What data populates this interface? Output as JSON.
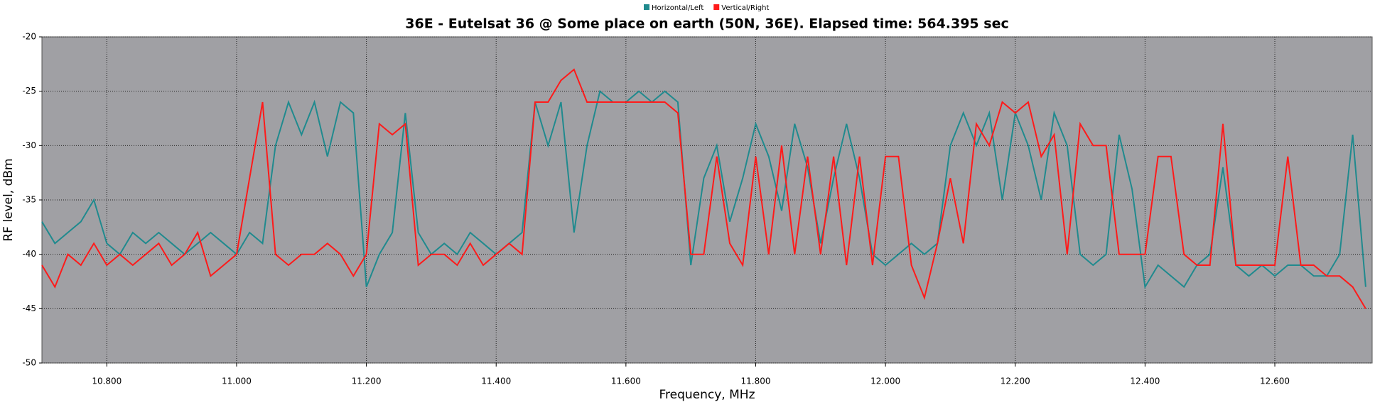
{
  "chart_data": {
    "type": "line",
    "title": "36E - Eutelsat 36 @ Some place on earth (50N, 36E). Elapsed time: 564.395 sec",
    "x_label": "Frequency, MHz",
    "y_label": "RF level, dBm",
    "x": [
      10.7,
      10.72,
      10.74,
      10.76,
      10.78,
      10.8,
      10.82,
      10.84,
      10.86,
      10.88,
      10.9,
      10.92,
      10.94,
      10.96,
      10.98,
      11,
      11.02,
      11.04,
      11.06,
      11.08,
      11.1,
      11.12,
      11.14,
      11.16,
      11.18,
      11.2,
      11.22,
      11.24,
      11.26,
      11.28,
      11.3,
      11.32,
      11.34,
      11.36,
      11.38,
      11.4,
      11.42,
      11.44,
      11.46,
      11.48,
      11.5,
      11.52,
      11.54,
      11.56,
      11.58,
      11.6,
      11.62,
      11.64,
      11.66,
      11.68,
      11.7,
      11.72,
      11.74,
      11.76,
      11.78,
      11.8,
      11.82,
      11.84,
      11.86,
      11.88,
      11.9,
      11.92,
      11.94,
      11.96,
      11.98,
      12,
      12.02,
      12.04,
      12.06,
      12.08,
      12.1,
      12.12,
      12.14,
      12.16,
      12.18,
      12.2,
      12.22,
      12.24,
      12.26,
      12.28,
      12.3,
      12.32,
      12.34,
      12.36,
      12.38,
      12.4,
      12.42,
      12.44,
      12.46,
      12.48,
      12.5,
      12.52,
      12.54,
      12.56,
      12.58,
      12.6,
      12.62,
      12.64,
      12.66,
      12.68,
      12.7,
      12.72,
      12.74
    ],
    "series": [
      {
        "name": "Horizontal/Left",
        "color": "#208a8e",
        "values": [
          -37,
          -39,
          -38,
          -37,
          -35,
          -39,
          -40,
          -38,
          -39,
          -38,
          -39,
          -40,
          -39,
          -38,
          -39,
          -40,
          -38,
          -39,
          -30,
          -26,
          -29,
          -26,
          -31,
          -26,
          -27,
          -43,
          -40,
          -38,
          -27,
          -38,
          -40,
          -39,
          -40,
          -38,
          -39,
          -40,
          -39,
          -38,
          -26,
          -30,
          -26,
          -38,
          -30,
          -25,
          -26,
          -26,
          -25,
          -26,
          -25,
          -26,
          -41,
          -33,
          -30,
          -37,
          -33,
          -28,
          -31,
          -36,
          -28,
          -32,
          -39,
          -33,
          -28,
          -33,
          -40,
          -41,
          -40,
          -39,
          -40,
          -39,
          -30,
          -27,
          -30,
          -27,
          -35,
          -27,
          -30,
          -35,
          -27,
          -30,
          -40,
          -41,
          -40,
          -29,
          -34,
          -43,
          -41,
          -42,
          -43,
          -41,
          -40,
          -32,
          -41,
          -42,
          -41,
          -42,
          -41,
          -41,
          -42,
          -42,
          -40,
          -29,
          -43
        ]
      },
      {
        "name": "Vertical/Right",
        "color": "#ff1a1a",
        "values": [
          -41,
          -43,
          -40,
          -41,
          -39,
          -41,
          -40,
          -41,
          -40,
          -39,
          -41,
          -40,
          -38,
          -42,
          -41,
          -40,
          -33,
          -26,
          -40,
          -41,
          -40,
          -40,
          -39,
          -40,
          -42,
          -40,
          -28,
          -29,
          -28,
          -41,
          -40,
          -40,
          -41,
          -39,
          -41,
          -40,
          -39,
          -40,
          -26,
          -26,
          -24,
          -23,
          -26,
          -26,
          -26,
          -26,
          -26,
          -26,
          -26,
          -27,
          -40,
          -40,
          -31,
          -39,
          -41,
          -31,
          -40,
          -30,
          -40,
          -31,
          -40,
          -31,
          -41,
          -31,
          -41,
          -31,
          -31,
          -41,
          -44,
          -39,
          -33,
          -39,
          -28,
          -30,
          -26,
          -27,
          -26,
          -31,
          -29,
          -40,
          -28,
          -30,
          -30,
          -40,
          -40,
          -40,
          -31,
          -31,
          -40,
          -41,
          -41,
          -28,
          -41,
          -41,
          -41,
          -41,
          -31,
          -41,
          -41,
          -42,
          -42,
          -43,
          -45
        ]
      }
    ],
    "xlim": [
      10.7,
      12.75
    ],
    "xticks": [
      {
        "value": 10.8,
        "label": "10.800"
      },
      {
        "value": 11,
        "label": "11.000"
      },
      {
        "value": 11.2,
        "label": "11.200"
      },
      {
        "value": 11.4,
        "label": "11.400"
      },
      {
        "value": 11.6,
        "label": "11.600"
      },
      {
        "value": 11.8,
        "label": "11.800"
      },
      {
        "value": 12,
        "label": "12.000"
      },
      {
        "value": 12.2,
        "label": "12.200"
      },
      {
        "value": 12.4,
        "label": "12.400"
      },
      {
        "value": 12.6,
        "label": "12.600"
      }
    ],
    "ylim": [
      -50,
      -20
    ],
    "yticks": [
      -50,
      -45,
      -40,
      -35,
      -30,
      -25,
      -20
    ],
    "grid": true
  }
}
